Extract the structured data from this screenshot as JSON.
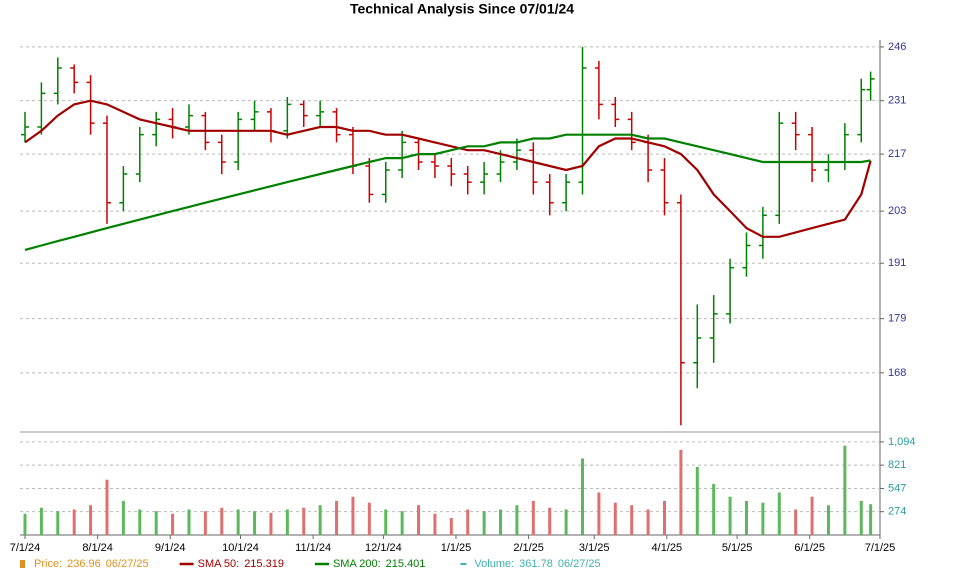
{
  "chart_data": [
    {
      "type": "ohlc",
      "title": "Technical Analysis Since 07/01/24",
      "x": [
        "7/1/24",
        "7/8/24",
        "7/15/24",
        "7/22/24",
        "7/29/24",
        "8/5/24",
        "8/12/24",
        "8/19/24",
        "8/26/24",
        "9/2/24",
        "9/9/24",
        "9/16/24",
        "9/23/24",
        "9/30/24",
        "10/7/24",
        "10/14/24",
        "10/21/24",
        "10/28/24",
        "11/4/24",
        "11/11/24",
        "11/18/24",
        "11/25/24",
        "12/2/24",
        "12/9/24",
        "12/16/24",
        "12/23/24",
        "12/30/24",
        "1/6/25",
        "1/13/25",
        "1/20/25",
        "1/27/25",
        "2/3/25",
        "2/10/25",
        "2/17/25",
        "2/24/25",
        "3/3/25",
        "3/10/25",
        "3/17/25",
        "3/24/25",
        "3/31/25",
        "4/7/25",
        "4/14/25",
        "4/21/25",
        "4/28/25",
        "5/5/25",
        "5/12/25",
        "5/19/25",
        "5/26/25",
        "6/2/25",
        "6/9/25",
        "6/16/25",
        "6/23/25",
        "6/27/25"
      ],
      "open": [
        222,
        224,
        233,
        240,
        236,
        225,
        205,
        212,
        222,
        226,
        224,
        227,
        220,
        215,
        226,
        228,
        223,
        230,
        227,
        228,
        222,
        214,
        207,
        213,
        220,
        215,
        214,
        212,
        210,
        212,
        215,
        218,
        210,
        205,
        210,
        240,
        230,
        226,
        220,
        213,
        205,
        170,
        175,
        180,
        190,
        195,
        202,
        225,
        222,
        213,
        215,
        222,
        234
      ],
      "high": [
        228,
        236,
        243,
        241,
        238,
        227,
        214,
        224,
        228,
        229,
        230,
        228,
        222,
        228,
        231,
        229,
        232,
        231,
        231,
        229,
        224,
        216,
        215,
        223,
        221,
        217,
        216,
        214,
        215,
        218,
        221,
        220,
        212,
        212,
        246,
        242,
        232,
        228,
        222,
        216,
        207,
        182,
        184,
        192,
        198,
        204,
        228,
        228,
        224,
        217,
        225,
        237,
        239
      ],
      "low": [
        220,
        222,
        230,
        233,
        222,
        200,
        203,
        210,
        219,
        221,
        222,
        218,
        212,
        213,
        223,
        220,
        221,
        224,
        224,
        220,
        212,
        205,
        205,
        211,
        213,
        211,
        209,
        207,
        207,
        210,
        213,
        207,
        202,
        203,
        207,
        226,
        224,
        218,
        210,
        202,
        158,
        165,
        170,
        178,
        188,
        192,
        200,
        218,
        210,
        210,
        213,
        220,
        231
      ],
      "close": [
        224,
        233,
        240,
        236,
        225,
        205,
        212,
        222,
        226,
        224,
        227,
        220,
        215,
        226,
        228,
        223,
        230,
        227,
        228,
        222,
        214,
        207,
        213,
        220,
        215,
        214,
        212,
        210,
        212,
        215,
        218,
        210,
        205,
        210,
        240,
        230,
        226,
        220,
        213,
        205,
        170,
        175,
        180,
        190,
        195,
        202,
        225,
        222,
        213,
        215,
        222,
        234,
        236.96
      ],
      "up_color": "#008000",
      "down_color": "#cc0000",
      "series": [
        {
          "name": "SMA 50",
          "color": "#a00000",
          "values": [
            220,
            223,
            227,
            230,
            231,
            230,
            228,
            226,
            225,
            224,
            223,
            223,
            223,
            223,
            223,
            223,
            222,
            223,
            224,
            224,
            223,
            223,
            222,
            222,
            221,
            220,
            219,
            218,
            218,
            217,
            216,
            215,
            214,
            213,
            214,
            219,
            221,
            221,
            220,
            219,
            217,
            213,
            207,
            203,
            199,
            197,
            197,
            198,
            199,
            200,
            201,
            207,
            215.319
          ]
        },
        {
          "name": "SMA 200",
          "color": "#008000",
          "values": [
            194,
            195,
            196,
            197,
            198,
            199,
            200,
            201,
            202,
            203,
            204,
            205,
            206,
            207,
            208,
            209,
            210,
            211,
            212,
            213,
            214,
            215,
            216,
            216,
            217,
            217,
            218,
            219,
            219,
            220,
            220,
            221,
            221,
            222,
            222,
            222,
            222,
            222,
            221,
            221,
            220,
            219,
            218,
            217,
            216,
            215,
            215,
            215,
            215,
            215,
            215,
            215,
            215.401
          ]
        }
      ],
      "xlim": [
        "7/1/24",
        "7/1/25"
      ],
      "xticks": [
        "7/1/24",
        "8/1/24",
        "9/1/24",
        "10/1/24",
        "11/1/24",
        "12/1/24",
        "1/1/25",
        "2/1/25",
        "3/1/25",
        "4/1/25",
        "5/1/25",
        "6/1/25",
        "7/1/25"
      ],
      "ylim": [
        157.5,
        248
      ],
      "ylog": true,
      "yticks": [
        168,
        179,
        191,
        203,
        217,
        231,
        246
      ],
      "grid": true,
      "tick_color": "#333399"
    },
    {
      "type": "volume",
      "values": [
        250,
        320,
        280,
        300,
        350,
        650,
        400,
        300,
        280,
        250,
        300,
        280,
        320,
        300,
        280,
        260,
        300,
        320,
        350,
        400,
        450,
        380,
        300,
        280,
        350,
        250,
        200,
        300,
        280,
        300,
        350,
        400,
        320,
        300,
        900,
        500,
        380,
        350,
        300,
        400,
        1000,
        800,
        600,
        450,
        400,
        380,
        500,
        300,
        450,
        350,
        1050,
        400,
        361.78
      ],
      "ylim": [
        0,
        1140
      ],
      "yticks": [
        274,
        547,
        821,
        {
          "value": 1094,
          "label": "1,094"
        }
      ],
      "grid": true,
      "tick_color": "#2aa0a0"
    }
  ],
  "legend": [
    {
      "label": "Price:",
      "value": "236.96",
      "date": "06/27/25",
      "color": "#e09020"
    },
    {
      "label": "SMA 50:",
      "value": "215.319",
      "color": "#a00000"
    },
    {
      "label": "SMA 200:",
      "value": "215.401",
      "color": "#008000"
    },
    {
      "label": "Volume:",
      "value": "361.78",
      "date": "06/27/25",
      "color": "#40b0b0"
    }
  ]
}
